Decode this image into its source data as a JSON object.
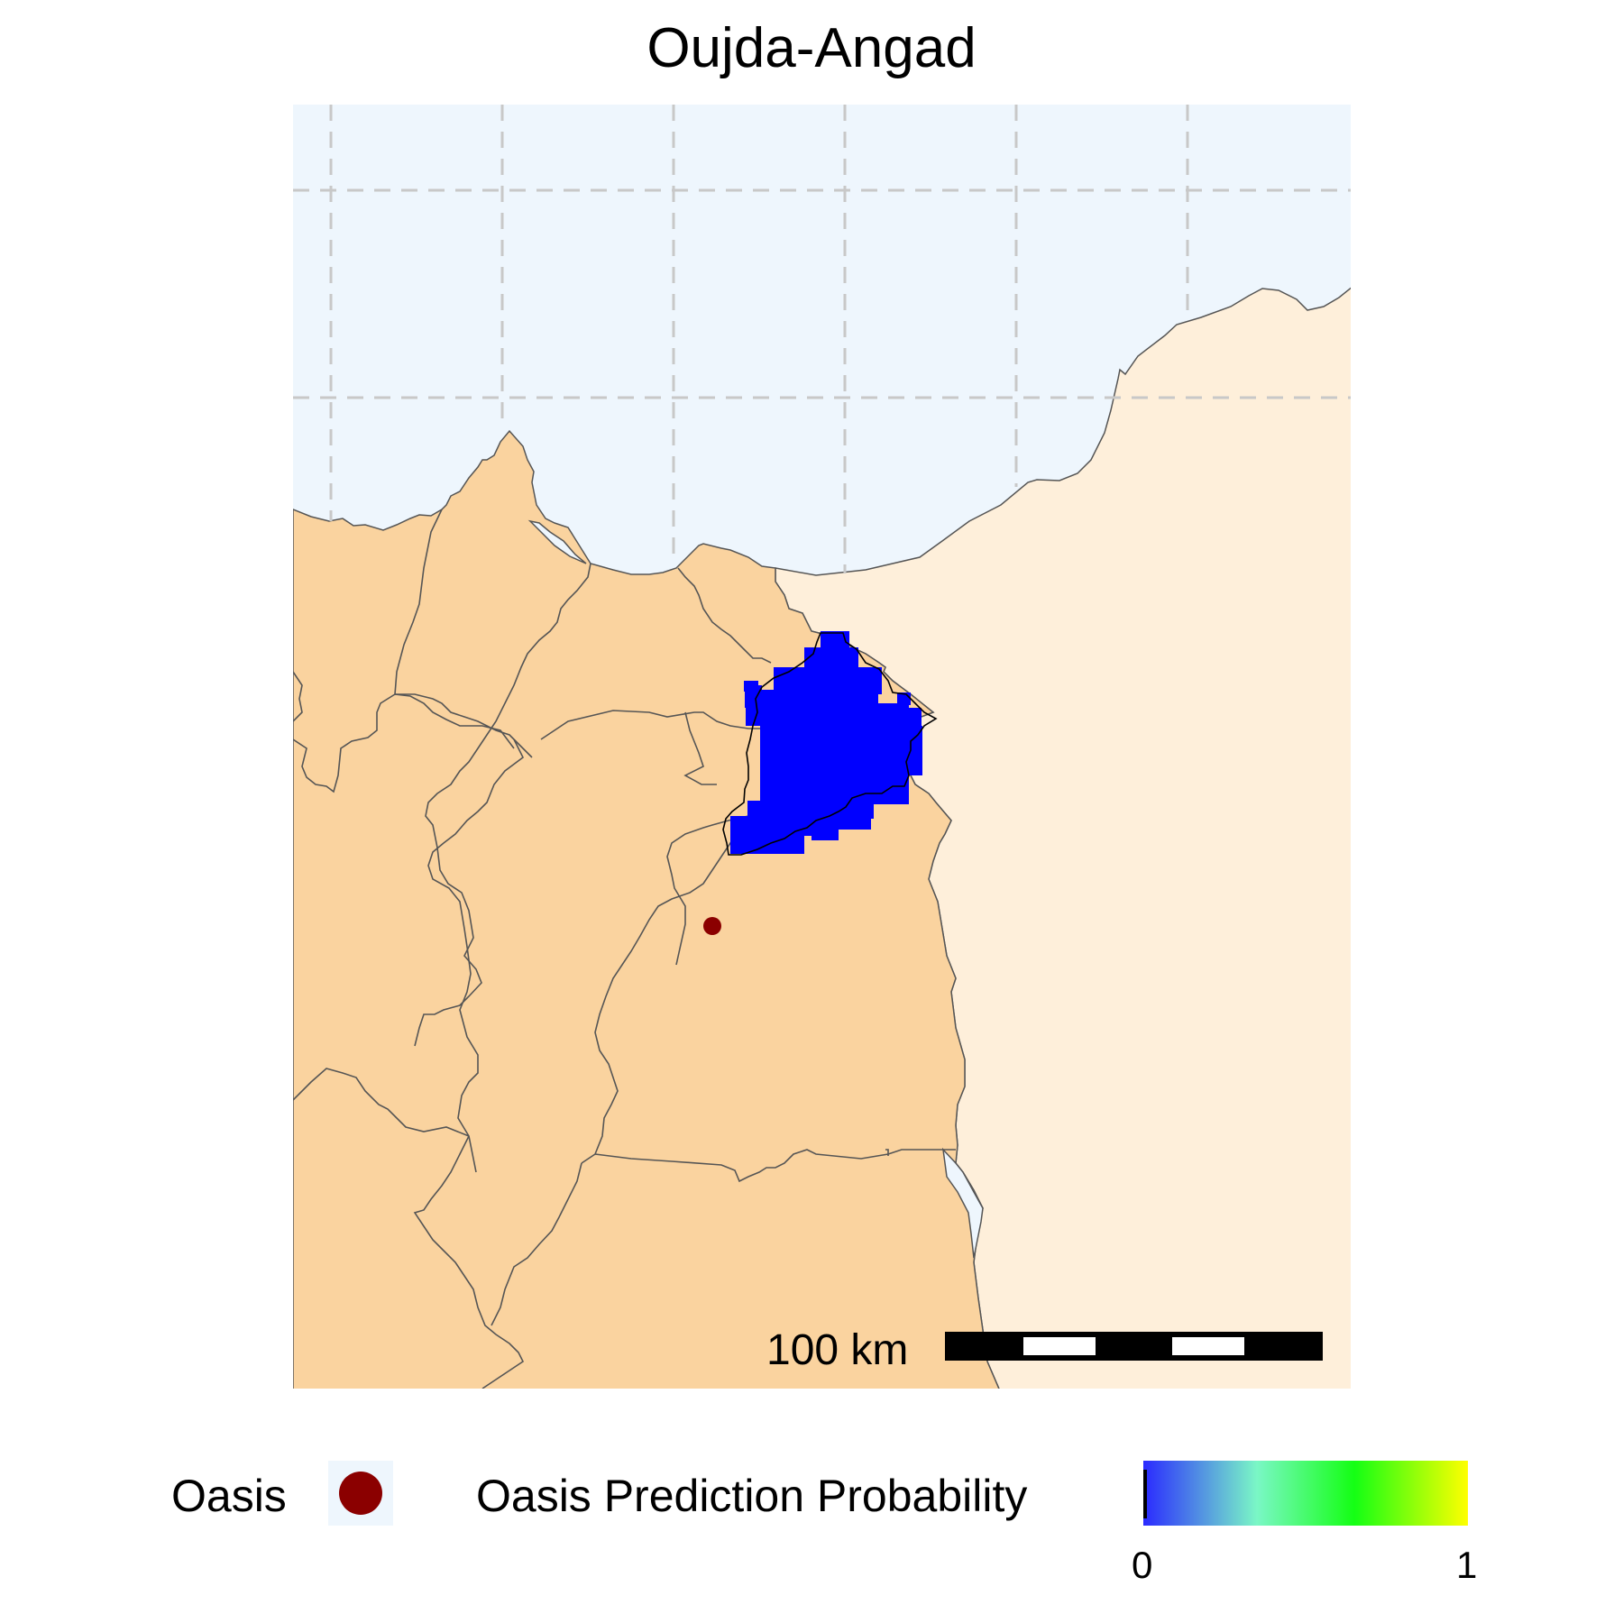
{
  "title": "Oujda-Angad",
  "map": {
    "sea_color": "#EEF6FD",
    "land_color": "#FAD39F",
    "foreign_land_color": "#FEEFDA",
    "prediction_color": "#0000FF",
    "oasis_point_color": "#8B0000",
    "graticule_style": "dashed grey"
  },
  "scale_bar": {
    "label": "100 km",
    "segments": 5
  },
  "legend": {
    "oasis_label": "Oasis",
    "oasis_icon": "dark-red-circle",
    "probability_label": "Oasis Prediction Probability",
    "probability_min": "0",
    "probability_max": "1",
    "probability_colors": [
      "#2A2AFF",
      "#7AF7C6",
      "#14FF14",
      "#FFFF00"
    ]
  }
}
